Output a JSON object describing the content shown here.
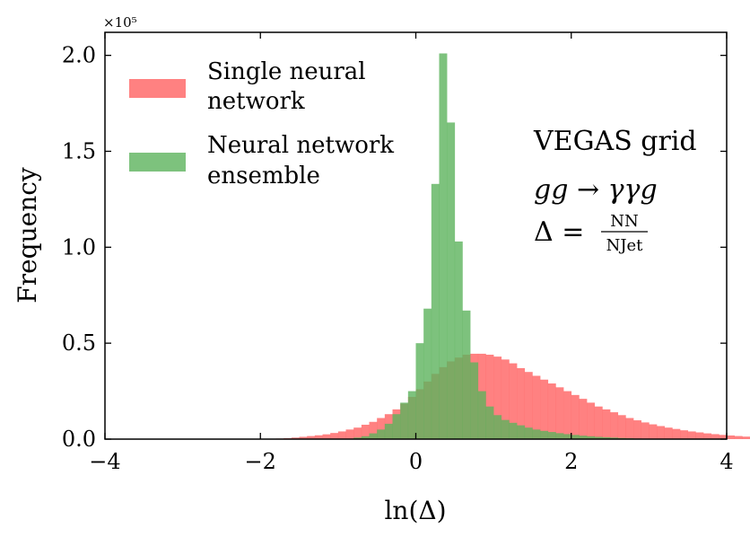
{
  "chart_data": {
    "type": "histogram",
    "xlabel": "ln(Δ)",
    "ylabel": "Frequency",
    "xlim": [
      -4,
      4
    ],
    "ylim": [
      0,
      212000
    ],
    "x_ticks": [
      -4,
      -2,
      0,
      2,
      4
    ],
    "x_tick_labels": [
      "−4",
      "−2",
      "0",
      "2",
      "4"
    ],
    "y_ticks": [
      0,
      50000,
      100000,
      150000,
      200000
    ],
    "y_tick_labels": [
      "0.0",
      "0.5",
      "1.0",
      "1.5",
      "2.0"
    ],
    "y_multiplier": "×10⁵",
    "grid": false,
    "legend_position": "top-left",
    "bin_width": 0.1,
    "series": [
      {
        "name": "Single neural network",
        "color": "#ff6b6b",
        "opacity": 0.85,
        "bin_start": -1.8,
        "values": [
          300,
          500,
          800,
          1200,
          1600,
          2000,
          2500,
          3200,
          4000,
          5000,
          6000,
          7500,
          9000,
          11000,
          13000,
          15500,
          18500,
          22000,
          26000,
          30000,
          34000,
          37500,
          40500,
          42500,
          44000,
          44500,
          44500,
          44000,
          43000,
          41500,
          39500,
          37000,
          35000,
          33000,
          31000,
          29000,
          27000,
          25000,
          23000,
          21000,
          19000,
          17000,
          15500,
          14000,
          12500,
          11000,
          9800,
          8700,
          7700,
          6800,
          6000,
          5300,
          4600,
          4000,
          3500,
          3000,
          2600,
          2200,
          1900,
          1600,
          1300,
          1100,
          900,
          750,
          600,
          500,
          400,
          300,
          250,
          200,
          150,
          100,
          80,
          50,
          30
        ]
      },
      {
        "name": "Neural network ensemble",
        "color": "#5db35d",
        "opacity": 0.8,
        "bin_start": -0.8,
        "values": [
          800,
          1500,
          3000,
          5000,
          8000,
          13000,
          19000,
          25000,
          50000,
          68000,
          133000,
          201000,
          165000,
          103000,
          67000,
          40000,
          25000,
          17000,
          12500,
          10000,
          8500,
          7200,
          6000,
          5000,
          4300,
          3700,
          3100,
          2600,
          2200,
          1800,
          1500,
          1200,
          1000,
          800,
          600,
          450,
          300,
          200,
          100
        ]
      }
    ],
    "annotations": {
      "line1": "VEGAS grid",
      "line2": "gg → γγg",
      "line3_prefix": "Δ = ",
      "frac_num": "NN",
      "frac_den": "NJet"
    },
    "legend": {
      "entry1_line1": "Single neural",
      "entry1_line2": "network",
      "entry2_line1": "Neural network",
      "entry2_line2": "ensemble"
    }
  }
}
